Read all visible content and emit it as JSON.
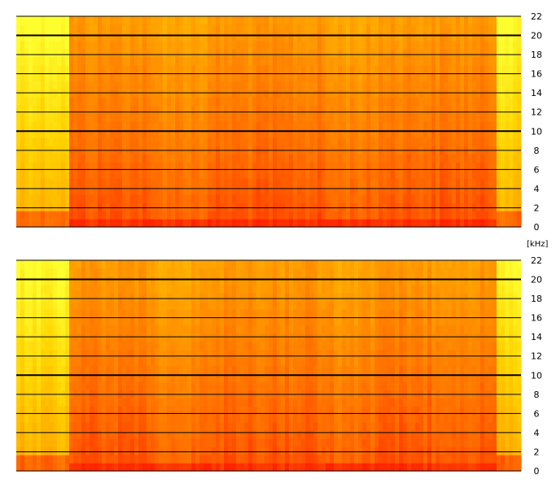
{
  "chart_data": [
    {
      "type": "heatmap",
      "name": "spectrogram-channel-1",
      "y_axis": {
        "range": [
          0,
          22
        ],
        "ticks": [
          0,
          2,
          4,
          6,
          8,
          10,
          12,
          14,
          16,
          18,
          20,
          22
        ],
        "tick_labels": [
          "0",
          "2",
          "4",
          "6",
          "8",
          "10",
          "12",
          "14",
          "16",
          "18",
          "20",
          "22"
        ],
        "major_ticks": [
          10,
          20
        ],
        "position": "right"
      },
      "x_axis": {
        "ticks": [],
        "tick_labels": []
      },
      "colormap": [
        "#ff2000",
        "#ff6a00",
        "#ffa000",
        "#ffd200",
        "#ffff30"
      ],
      "quiet_segments_fraction": [
        [
          0.0,
          0.105
        ],
        [
          0.955,
          1.0
        ]
      ],
      "bright_bands_fraction": [
        0.26,
        0.39,
        0.61,
        0.72
      ],
      "grid": true
    },
    {
      "type": "heatmap",
      "name": "spectrogram-channel-2",
      "y_axis": {
        "range": [
          0,
          22
        ],
        "ticks": [
          0,
          2,
          4,
          6,
          8,
          10,
          12,
          14,
          16,
          18,
          20,
          22
        ],
        "tick_labels": [
          "0",
          "2",
          "4",
          "6",
          "8",
          "10",
          "12",
          "14",
          "16",
          "18",
          "20",
          "22"
        ],
        "major_ticks": [
          10,
          20
        ],
        "position": "right"
      },
      "x_axis": {
        "ticks": [],
        "tick_labels": []
      },
      "colormap": [
        "#ff2000",
        "#ff6a00",
        "#ffa000",
        "#ffd200",
        "#ffff30"
      ],
      "quiet_segments_fraction": [
        [
          0.0,
          0.105
        ],
        [
          0.955,
          1.0
        ]
      ],
      "bright_bands_fraction": [
        0.26,
        0.39,
        0.61,
        0.72
      ],
      "grid": true
    }
  ],
  "unit_label": "[kHz]"
}
